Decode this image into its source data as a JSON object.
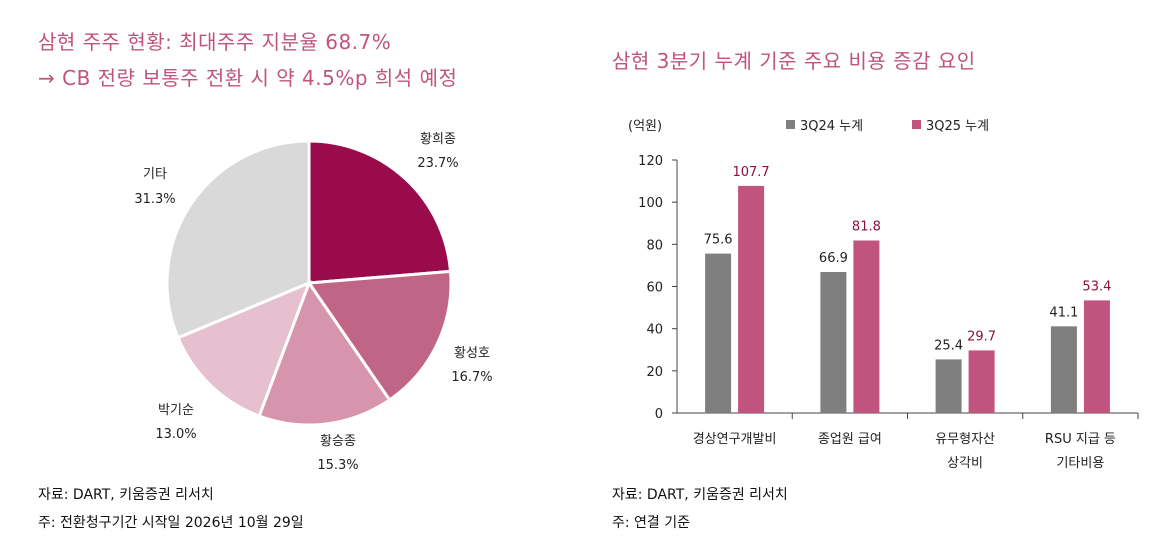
{
  "left_panel": {
    "title_line1": "삼현 주주 현황: 최대주주 지분율 68.7%",
    "title_line2": "→ CB 전량 보통주 전환 시 약 4.5%p 희석 예정",
    "source": "자료: DART, 키움증권 리서치",
    "note": "주: 전환청구기간 시작일 2026년 10월 29일"
  },
  "right_panel": {
    "title": "삼현 3분기 누계 기준 주요 비용 증감 요인",
    "source": "자료: DART, 키움증권 리서치",
    "note": "주: 연결 기준"
  },
  "chart_data": [
    {
      "type": "pie",
      "title": "삼현 주주 현황",
      "slices": [
        {
          "label": "황희종",
          "value": 23.7,
          "display": "23.7%",
          "color": "#9a0b4c"
        },
        {
          "label": "황성호",
          "value": 16.7,
          "display": "16.7%",
          "color": "#c06586"
        },
        {
          "label": "황승종",
          "value": 15.3,
          "display": "15.3%",
          "color": "#d695ac"
        },
        {
          "label": "박기순",
          "value": 13.0,
          "display": "13.0%",
          "color": "#e6c0cf"
        },
        {
          "label": "기타",
          "value": 31.3,
          "display": "31.3%",
          "color": "#d9d9d9"
        }
      ]
    },
    {
      "type": "bar",
      "title": "삼현 3분기 누계 기준 주요 비용 증감 요인",
      "unit_label": "(억원)",
      "categories": [
        [
          "경상연구개발비"
        ],
        [
          "종업원 급여"
        ],
        [
          "유무형자산",
          "상각비"
        ],
        [
          "RSU 지급 등",
          "기타비용"
        ]
      ],
      "series": [
        {
          "name": "3Q24 누계",
          "values": [
            75.6,
            66.9,
            25.4,
            41.1
          ],
          "color": "#7f7f7f",
          "label_color": "#222222"
        },
        {
          "name": "3Q25 누계",
          "values": [
            107.7,
            81.8,
            29.7,
            53.4
          ],
          "color": "#c0547e",
          "label_color": "#8a1040"
        }
      ],
      "ylim": [
        0,
        120
      ],
      "yticks": [
        0,
        20,
        40,
        60,
        80,
        100,
        120
      ]
    }
  ]
}
